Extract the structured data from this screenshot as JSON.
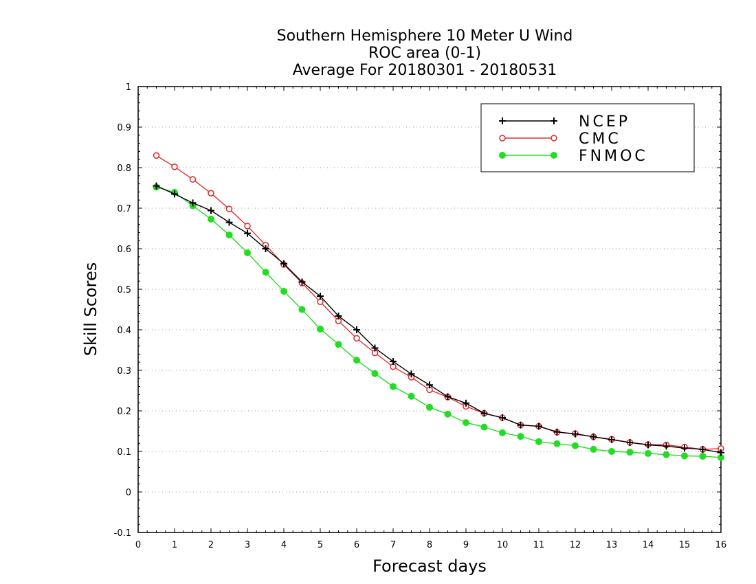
{
  "chart_data": {
    "type": "line",
    "title": [
      "Southern Hemisphere 10 Meter U Wind",
      "ROC area (0-1)",
      "Average For 20180301 - 20180531"
    ],
    "xlabel": "Forecast days",
    "ylabel": "Skill Scores",
    "xlim": [
      0,
      16
    ],
    "ylim": [
      -0.1,
      1
    ],
    "x_ticks": [
      0,
      1,
      2,
      3,
      4,
      5,
      6,
      7,
      8,
      9,
      10,
      11,
      12,
      13,
      14,
      15,
      16
    ],
    "y_ticks": [
      -0.1,
      0,
      0.1,
      0.2,
      0.3,
      0.4,
      0.5,
      0.6,
      0.7,
      0.8,
      0.9,
      1
    ],
    "y_tick_labels": [
      "-0.1",
      "0",
      "0.1",
      "0.2",
      "0.3",
      "0.4",
      "0.5",
      "0.6",
      "0.7",
      "0.8",
      "0.9",
      "1"
    ],
    "grid": "horizontal dotted",
    "legend_position": "top-right",
    "x": [
      0.5,
      1,
      1.5,
      2,
      2.5,
      3,
      3.5,
      4,
      4.5,
      5,
      5.5,
      6,
      6.5,
      7,
      7.5,
      8,
      8.5,
      9,
      9.5,
      10,
      10.5,
      11,
      11.5,
      12,
      12.5,
      13,
      13.5,
      14,
      14.5,
      15,
      15.5,
      16
    ],
    "series": [
      {
        "name": "NCEP",
        "color": "#000000",
        "marker": "plus",
        "values": [
          0.755,
          0.735,
          0.713,
          0.694,
          0.665,
          0.638,
          0.6,
          0.563,
          0.518,
          0.483,
          0.434,
          0.4,
          0.355,
          0.322,
          0.291,
          0.264,
          0.235,
          0.219,
          0.194,
          0.183,
          0.165,
          0.162,
          0.148,
          0.143,
          0.136,
          0.129,
          0.122,
          0.116,
          0.113,
          0.108,
          0.105,
          0.097
        ]
      },
      {
        "name": "CMC",
        "color": "#e03030",
        "marker": "open-circle",
        "values": [
          0.83,
          0.802,
          0.771,
          0.737,
          0.698,
          0.656,
          0.609,
          0.561,
          0.515,
          0.469,
          0.422,
          0.379,
          0.343,
          0.309,
          0.283,
          0.252,
          0.234,
          0.211,
          0.194,
          0.183,
          0.165,
          0.162,
          0.147,
          0.144,
          0.136,
          0.13,
          0.122,
          0.117,
          0.116,
          0.111,
          0.105,
          0.107
        ]
      },
      {
        "name": "FNMOC",
        "color": "#22dd22",
        "marker": "filled-circle",
        "values": [
          0.752,
          0.739,
          0.706,
          0.673,
          0.634,
          0.59,
          0.542,
          0.495,
          0.45,
          0.402,
          0.364,
          0.325,
          0.292,
          0.26,
          0.236,
          0.209,
          0.192,
          0.171,
          0.16,
          0.146,
          0.137,
          0.124,
          0.119,
          0.114,
          0.105,
          0.1,
          0.098,
          0.095,
          0.092,
          0.089,
          0.088,
          0.085
        ]
      }
    ]
  }
}
